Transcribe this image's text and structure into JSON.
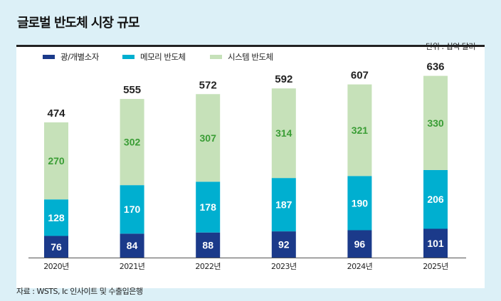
{
  "title": "글로벌 반도체 시장 규모",
  "source": "자료 : WSTS, Ic 인사이트 및 수출입은행",
  "chart_data": {
    "type": "bar",
    "stacked": true,
    "unit_label": "단위 : 십억 달러",
    "categories": [
      "2020년",
      "2021년",
      "2022년",
      "2023년",
      "2024년",
      "2025년"
    ],
    "series": [
      {
        "name": "광/개별소자",
        "color": "#1b3a8a",
        "label_color": "#ffffff",
        "values": [
          76,
          84,
          88,
          92,
          96,
          101
        ]
      },
      {
        "name": "메모리 반도체",
        "color": "#00afd0",
        "label_color": "#ffffff",
        "values": [
          128,
          170,
          178,
          187,
          190,
          206
        ]
      },
      {
        "name": "시스템 반도체",
        "color": "#c6e1b9",
        "label_color": "#3a9d35",
        "values": [
          270,
          302,
          307,
          314,
          321,
          330
        ]
      }
    ],
    "totals": [
      474,
      555,
      572,
      592,
      607,
      636
    ],
    "ylim": [
      0,
      636
    ],
    "legend_position": "top-left",
    "grid": false
  }
}
